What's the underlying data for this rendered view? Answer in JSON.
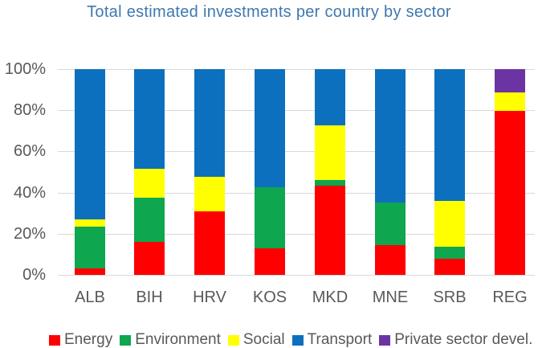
{
  "title": "Total estimated investments per country by sector",
  "colors": {
    "title": "#3E78B0",
    "axis_text": "#595959",
    "gridline": "#D9D9D9"
  },
  "chart_data": {
    "type": "bar",
    "stacked": true,
    "unit": "percent",
    "title": "Total estimated investments per country by sector",
    "categories": [
      "ALB",
      "BIH",
      "HRV",
      "KOS",
      "MKD",
      "MNE",
      "SRB",
      "REG"
    ],
    "series": [
      {
        "name": "Energy",
        "color": "#FE0000",
        "values": [
          3,
          16,
          31,
          13,
          43.5,
          14.5,
          8,
          79.5
        ]
      },
      {
        "name": "Environment",
        "color": "#0EA64F",
        "values": [
          20.5,
          21.5,
          0,
          29.5,
          2.5,
          20.5,
          5.5,
          0
        ]
      },
      {
        "name": "Social",
        "color": "#FFFF00",
        "values": [
          3.5,
          14,
          16.5,
          0,
          26.5,
          0,
          22.5,
          9
        ]
      },
      {
        "name": "Transport",
        "color": "#0D70BE",
        "values": [
          73,
          48.5,
          52.5,
          57.5,
          27.5,
          65,
          64,
          0
        ]
      },
      {
        "name": "Private sector devel.",
        "color": "#6C34A3",
        "values": [
          0,
          0,
          0,
          0,
          0,
          0,
          0,
          11.5
        ]
      }
    ],
    "y_ticks": [
      "0%",
      "20%",
      "40%",
      "60%",
      "80%",
      "100%"
    ],
    "ylim": [
      0,
      100
    ],
    "grid": true,
    "legend_position": "bottom"
  }
}
